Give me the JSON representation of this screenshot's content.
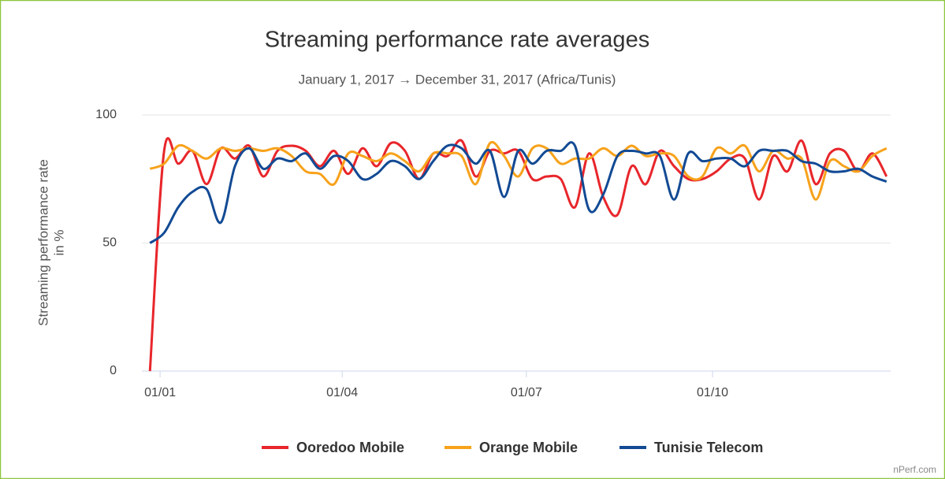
{
  "chart_data": {
    "type": "line",
    "title": "Streaming performance rate averages",
    "subtitle": "January 1, 2017 → December 31, 2017 (Africa/Tunis)",
    "y_label": [
      "Streaming performance rate",
      "in %"
    ],
    "source": "nPerf.com",
    "x": [
      -5,
      2,
      9,
      16,
      23,
      30,
      37,
      44,
      51,
      58,
      65,
      72,
      79,
      86,
      93,
      100,
      107,
      114,
      121,
      128,
      135,
      142,
      149,
      156,
      163,
      170,
      177,
      184,
      191,
      198,
      205,
      212,
      219,
      226,
      233,
      240,
      247,
      254,
      261,
      268,
      275,
      282,
      289,
      296,
      303,
      310,
      317,
      324,
      331,
      338,
      345,
      352,
      359
    ],
    "xlim": [
      -9,
      361
    ],
    "xticks": [
      {
        "value": 0,
        "label": "01/01"
      },
      {
        "value": 90,
        "label": "01/04"
      },
      {
        "value": 181,
        "label": "01/07"
      },
      {
        "value": 273,
        "label": "01/10"
      }
    ],
    "ylim": [
      0,
      100
    ],
    "yticks": [
      0,
      50,
      100
    ],
    "grid": true,
    "legend": "bottom",
    "series": [
      {
        "name": "Ooredoo Mobile",
        "color": "#e8262b",
        "values": [
          0,
          86,
          81,
          86,
          73,
          87,
          83,
          88,
          76,
          86,
          88,
          86,
          80,
          86,
          77,
          87,
          80,
          89,
          86,
          75,
          85,
          84,
          90,
          76,
          86,
          85,
          86,
          75,
          76,
          75,
          64,
          85,
          68,
          61,
          80,
          73,
          86,
          80,
          75,
          75,
          78,
          83,
          83,
          67,
          84,
          78,
          90,
          73,
          85,
          86,
          78,
          85,
          76
        ]
      },
      {
        "name": "Orange Mobile",
        "color": "#f7a21b",
        "values": [
          79,
          81,
          88,
          86,
          83,
          87,
          86,
          87,
          86,
          87,
          84,
          78,
          77,
          73,
          85,
          84,
          82,
          85,
          82,
          78,
          85,
          85,
          84,
          73,
          89,
          84,
          76,
          87,
          87,
          81,
          83,
          83,
          87,
          84,
          88,
          84,
          85,
          84,
          76,
          76,
          87,
          85,
          88,
          78,
          86,
          83,
          83,
          67,
          82,
          80,
          78,
          84,
          87
        ]
      },
      {
        "name": "Tunisie Telecom",
        "color": "#124a94",
        "values": [
          50,
          54,
          64,
          70,
          71,
          58,
          80,
          87,
          79,
          83,
          82,
          85,
          79,
          84,
          82,
          75,
          77,
          82,
          80,
          75,
          82,
          88,
          87,
          81,
          86,
          68,
          86,
          81,
          86,
          86,
          88,
          63,
          69,
          84,
          86,
          85,
          84,
          67,
          85,
          82,
          83,
          83,
          80,
          86,
          86,
          86,
          82,
          81,
          78,
          78,
          79,
          76,
          74
        ]
      }
    ]
  }
}
